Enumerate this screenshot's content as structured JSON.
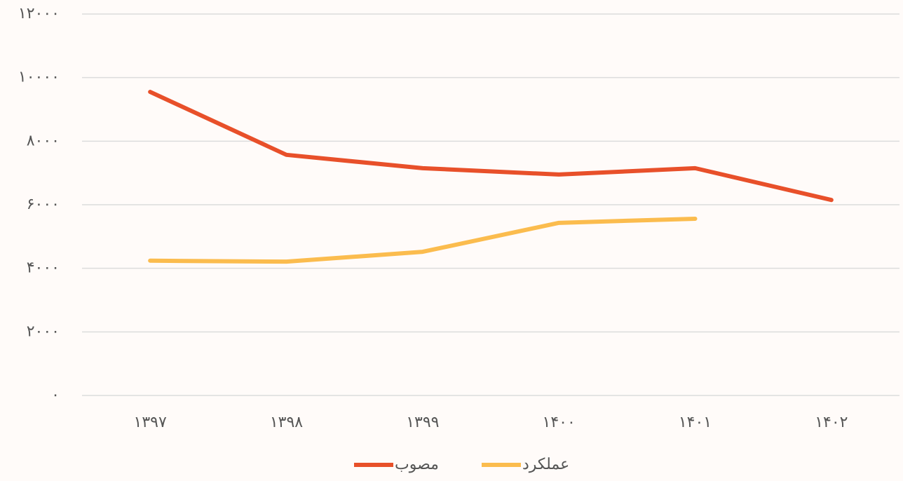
{
  "chart_data": {
    "type": "line",
    "categories": [
      "۱۳۹۷",
      "۱۳۹۸",
      "۱۳۹۹",
      "۱۴۰۰",
      "۱۴۰۱",
      "۱۴۰۲"
    ],
    "series": [
      {
        "name": "مصوب",
        "color": "#e8502a",
        "values": [
          9550,
          7570,
          7150,
          6950,
          7150,
          6150
        ]
      },
      {
        "name": "عملکرد",
        "color": "#fbbc4e",
        "values": [
          4240,
          4210,
          4520,
          5430,
          5560,
          null
        ]
      }
    ],
    "ylim": [
      0,
      12000
    ],
    "yticks": [
      {
        "value": 0,
        "label": "۰"
      },
      {
        "value": 2000,
        "label": "۲۰۰۰"
      },
      {
        "value": 4000,
        "label": "۴۰۰۰"
      },
      {
        "value": 6000,
        "label": "۶۰۰۰"
      },
      {
        "value": 8000,
        "label": "۸۰۰۰"
      },
      {
        "value": 10000,
        "label": "۱۰۰۰۰"
      },
      {
        "value": 12000,
        "label": "۱۲۰۰۰"
      }
    ],
    "grid": true,
    "legend": "bottom"
  }
}
